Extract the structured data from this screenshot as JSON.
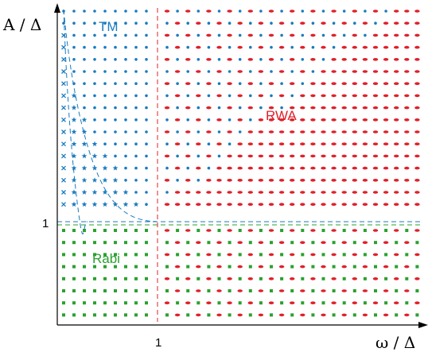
{
  "axes": {
    "x_label": "ω / Δ",
    "y_label": "A / Δ",
    "x_tick": "1",
    "y_tick": "1"
  },
  "regions": [
    {
      "key": "tm",
      "label": "TM",
      "color": "#1a7bbf"
    },
    {
      "key": "rwa",
      "label": "RWA",
      "color": "#e0202a"
    },
    {
      "key": "rabi",
      "label": "Rabi",
      "color": "#2aa12e"
    }
  ],
  "colors": {
    "tm": "#1a7bbf",
    "rwa": "#e0202a",
    "rabi": "#2aa12e",
    "axis": "#000000"
  }
}
